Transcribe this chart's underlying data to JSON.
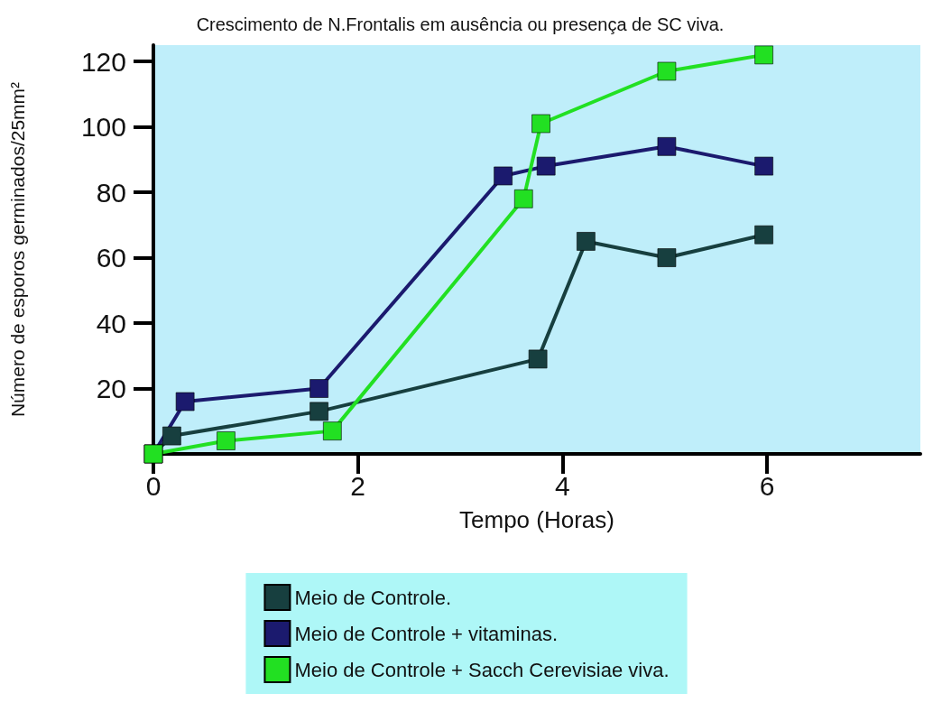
{
  "chart_data": {
    "type": "line",
    "title": "Crescimento de N.Frontalis em ausência ou presença de SC viva.",
    "xlabel": "Tempo (Horas)",
    "ylabel": "Número de esporos germinados/25mm²",
    "xlim": [
      0,
      7.5
    ],
    "xticks": [
      0,
      2,
      4,
      6
    ],
    "ylim": [
      0,
      125
    ],
    "yticks": [
      20,
      40,
      60,
      80,
      100,
      120
    ],
    "grid": false,
    "legend": "bottom",
    "marker": "square",
    "line_style": "solid",
    "series": [
      {
        "name": "Meio de Controle.",
        "color": "#173f3f",
        "x": [
          0,
          0.18,
          1.62,
          3.76,
          4.23,
          5.02,
          5.97
        ],
        "values": [
          0,
          5.5,
          13,
          29,
          65,
          60,
          67
        ]
      },
      {
        "name": "Meio de Controle + vitaminas.",
        "color": "#1b1a6e",
        "x": [
          0,
          0.31,
          1.62,
          3.42,
          3.84,
          5.02,
          5.97
        ],
        "values": [
          0,
          16,
          20,
          85,
          88,
          94,
          88
        ]
      },
      {
        "name": "Meio de Controle + Sacch Cerevisiae viva.",
        "color": "#22e022",
        "x": [
          0,
          0.71,
          1.75,
          3.62,
          3.79,
          5.02,
          5.97
        ],
        "values": [
          0,
          4,
          7,
          78,
          101,
          117,
          122
        ]
      }
    ]
  }
}
